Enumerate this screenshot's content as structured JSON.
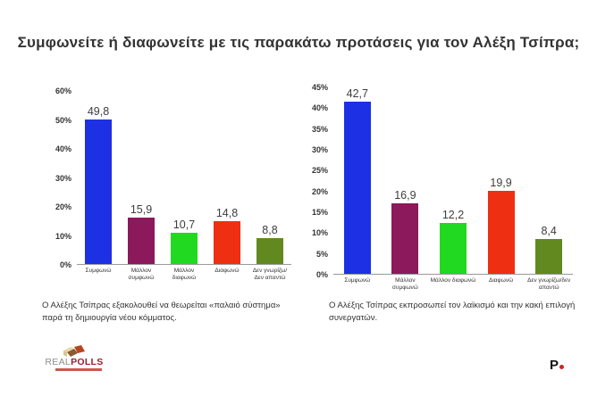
{
  "title": "Συμφωνείτε ή διαφωνείτε με τις παρακάτω προτάσεις για τον Αλέξη Τσίπρα;",
  "colors": {
    "bars": [
      "#1d30e4",
      "#8b195b",
      "#21d921",
      "#ee2f11",
      "#61891f"
    ],
    "axis_line": "#999999",
    "text": "#333333",
    "logo_polls": "#9b1b31",
    "logo_real": "#8d8d8d",
    "p_dot": "#d42222"
  },
  "chart_data": [
    {
      "type": "bar",
      "categories": [
        "Συμφωνώ",
        "Μάλλον συμφωνώ",
        "Μάλλον διαφωνώ",
        "Διαφωνώ",
        "Δεν γνωρίζω/Δεν απαντώ"
      ],
      "values": [
        49.8,
        15.9,
        10.7,
        14.8,
        8.8
      ],
      "value_labels": [
        "49,8",
        "15,9",
        "10,7",
        "14,8",
        "8,8"
      ],
      "ylim": [
        0,
        60
      ],
      "ytick_step": 10,
      "ytick_labels": [
        "0%",
        "10%",
        "20%",
        "30%",
        "40%",
        "50%",
        "60%"
      ],
      "grid": false,
      "legend": "none",
      "caption": "Ο Αλέξης Τσίπρας εξακολουθεί να θεωρείται «παλαιό σύστημα» παρά τη δημιουργία νέου κόμματος."
    },
    {
      "type": "bar",
      "categories": [
        "Συμφωνώ",
        "Μάλλον συμφωνώ",
        "Μάλλον διαφωνώ",
        "Διαφωνώ",
        "Δεν γνωρίζω/δεν απαντώ"
      ],
      "values": [
        42.7,
        16.9,
        12.2,
        19.9,
        8.4
      ],
      "value_labels": [
        "42,7",
        "16,9",
        "12,2",
        "19,9",
        "8,4"
      ],
      "ylim": [
        0,
        45
      ],
      "ytick_step": 5,
      "ytick_labels": [
        "0%",
        "5%",
        "10%",
        "15%",
        "20%",
        "25%",
        "30%",
        "35%",
        "40%",
        "45%"
      ],
      "grid": false,
      "legend": "none",
      "caption": "Ο Αλέξης Τσίπρας εκπροσωπεί τον λαϊκισμό και την κακή επιλογή συνεργατών."
    }
  ],
  "footer": {
    "left_logo": {
      "real": "REAL",
      "polls": "POLLS"
    },
    "right_logo": {
      "letter": "P"
    }
  }
}
